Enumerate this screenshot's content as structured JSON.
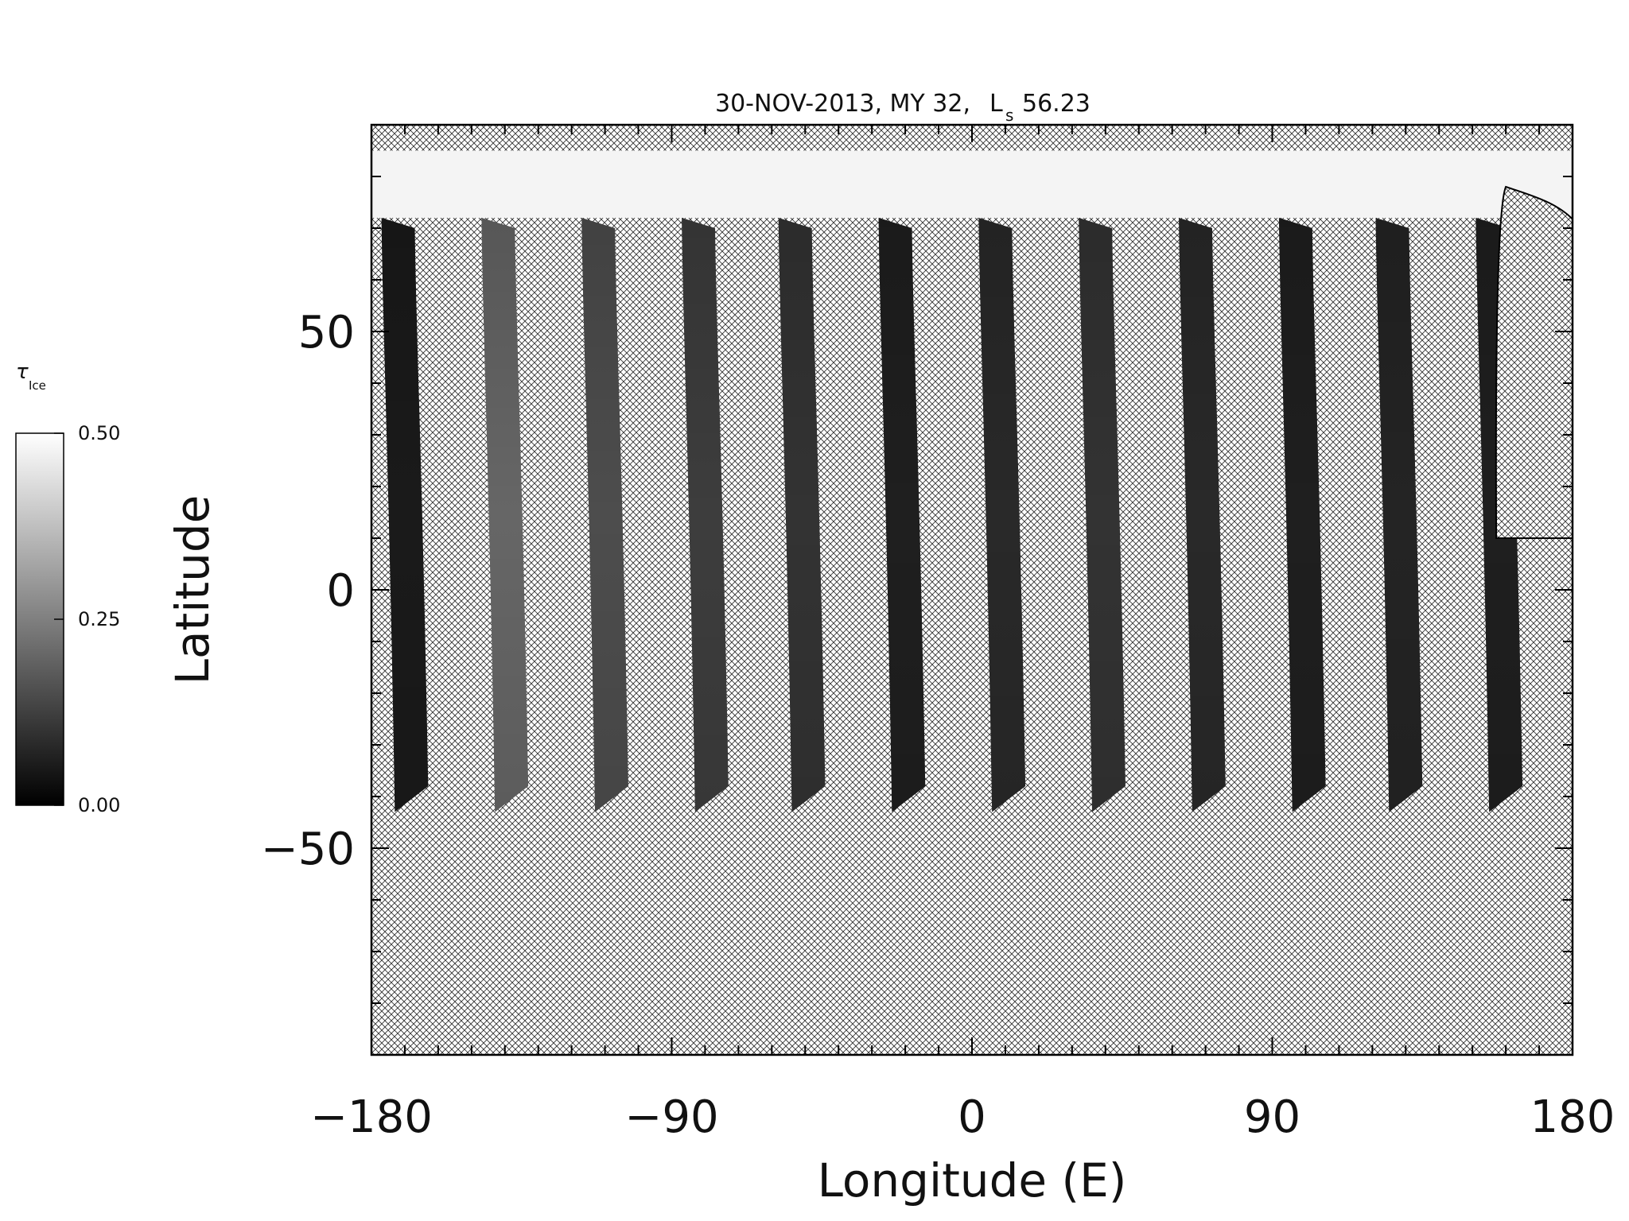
{
  "chart_data": {
    "type": "heatmap",
    "title": "30-NOV-2013, MY 32,",
    "title_ls_symbol": "L",
    "title_ls_sub": "s",
    "title_ls_value": "56.23",
    "xlabel": "Longitude (E)",
    "ylabel": "Latitude",
    "xlim": [
      -180,
      180
    ],
    "ylim": [
      -90,
      90
    ],
    "xticks": [
      -180,
      -90,
      0,
      90,
      180
    ],
    "xtick_labels": [
      "−180",
      "−90",
      "0",
      "90",
      "180"
    ],
    "yticks": [
      50,
      0,
      -50
    ],
    "ytick_labels": [
      "50",
      "0",
      "−50"
    ],
    "colorbar": {
      "symbol": "τ",
      "subscript": "Ice",
      "min": 0.0,
      "max": 0.5,
      "ticks": [
        0.5,
        0.25,
        0.0
      ],
      "tick_labels": [
        "0.50",
        "0.25",
        "0.00"
      ],
      "color_low": "#000000",
      "color_high": "#ffffff"
    },
    "swath_coverage": {
      "south_limit_deg": -43,
      "north_limit_deg": 72,
      "polar_cap_lat_deg": [
        72,
        85
      ],
      "swath_start_lon_deg": [
        -173,
        -143,
        -113,
        -83,
        -54,
        -24,
        6,
        36,
        66,
        96,
        125,
        155
      ],
      "swath_width_deg": 10,
      "typical_tau_ice": [
        0.05,
        0.2,
        0.15,
        0.12,
        0.1,
        0.06,
        0.08,
        0.1,
        0.08,
        0.06,
        0.07,
        0.06
      ]
    },
    "no_data_pattern": "cross-hatch",
    "grid": false
  }
}
